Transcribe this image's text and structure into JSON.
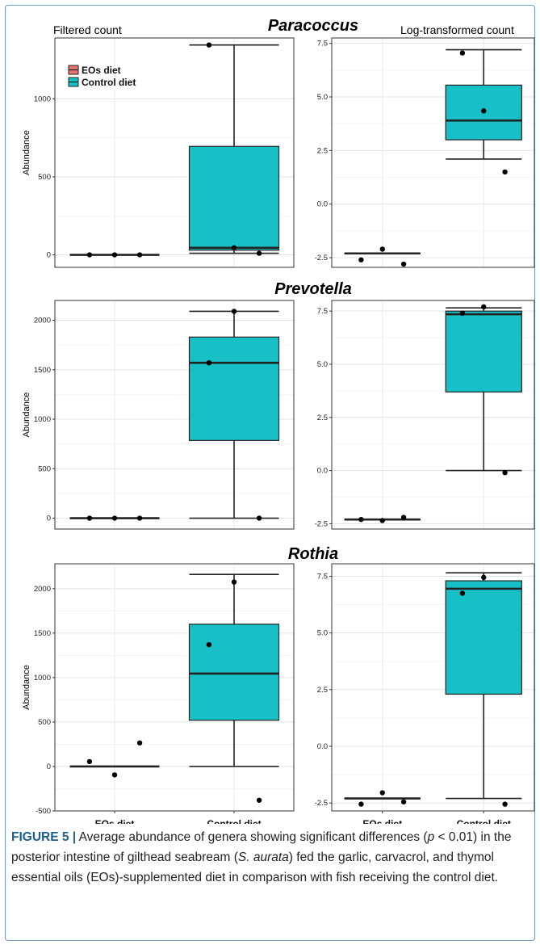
{
  "top_labels": {
    "left": "Filtered count",
    "right": "Log-transformed count"
  },
  "legend": [
    {
      "name": "EOs diet",
      "color": "#e8746d"
    },
    {
      "name": "Control diet",
      "color": "#16c0c6"
    }
  ],
  "y_axis_label": "Abundance",
  "categories": [
    "EOs diet",
    "Control diet"
  ],
  "caption": {
    "label": "FIGURE 5",
    "sep": "|",
    "t1": "Average abundance of genera showing significant differences (",
    "p": "p",
    "t2": " < 0.01) in the posterior intestine of gilthead seabream (",
    "sp": "S. aurata",
    "t3": ") fed the garlic, carvacrol, and thymol essential oils (EOs)-supplemented diet in comparison with fish receiving the control diet."
  },
  "chart_data": [
    {
      "genus": "Paracoccus",
      "type": "box",
      "filtered": {
        "ylim": [
          -80,
          1390
        ],
        "yticks": [
          0,
          500,
          1000
        ],
        "boxes": [
          {
            "category": "EOs diet",
            "min": 0,
            "q1": 0,
            "median": 0,
            "q3": 0,
            "max": 0,
            "points": [
              [
                1,
                0
              ],
              [
                2,
                0
              ],
              [
                3,
                0
              ]
            ]
          },
          {
            "category": "Control diet",
            "min": 10,
            "q1": 30,
            "median": 45,
            "q3": 695,
            "max": 1345,
            "points": [
              [
                1,
                1345
              ],
              [
                2,
                45
              ],
              [
                3,
                10
              ]
            ]
          }
        ]
      },
      "log": {
        "ylim": [
          -2.95,
          7.75
        ],
        "yticks": [
          -2.5,
          0.0,
          2.5,
          5.0,
          7.5
        ],
        "boxes": [
          {
            "category": "EOs diet",
            "min": -2.3,
            "q1": -2.3,
            "median": -2.3,
            "q3": -2.3,
            "max": -2.3,
            "points": [
              [
                1,
                -2.6
              ],
              [
                2,
                -2.1
              ],
              [
                3,
                -2.8
              ]
            ]
          },
          {
            "category": "Control diet",
            "min": 2.1,
            "q1": 3.0,
            "median": 3.9,
            "q3": 5.55,
            "max": 7.2,
            "points": [
              [
                1,
                7.05
              ],
              [
                2,
                4.35
              ],
              [
                3,
                1.5
              ]
            ]
          }
        ]
      }
    },
    {
      "genus": "Prevotella",
      "type": "box",
      "filtered": {
        "ylim": [
          -110,
          2200
        ],
        "yticks": [
          0,
          500,
          1000,
          1500,
          2000
        ],
        "boxes": [
          {
            "category": "EOs diet",
            "min": 0,
            "q1": 0,
            "median": 0,
            "q3": 0,
            "max": 0,
            "points": [
              [
                1,
                0
              ],
              [
                2,
                0
              ],
              [
                3,
                0
              ]
            ]
          },
          {
            "category": "Control diet",
            "min": 0,
            "q1": 785,
            "median": 1570,
            "q3": 1830,
            "max": 2090,
            "points": [
              [
                1,
                1570
              ],
              [
                2,
                2090
              ],
              [
                3,
                0
              ]
            ]
          }
        ]
      },
      "log": {
        "ylim": [
          -2.75,
          8.0
        ],
        "yticks": [
          -2.5,
          0.0,
          2.5,
          5.0,
          7.5
        ],
        "boxes": [
          {
            "category": "EOs diet",
            "min": -2.3,
            "q1": -2.3,
            "median": -2.3,
            "q3": -2.3,
            "max": -2.3,
            "points": [
              [
                1,
                -2.3
              ],
              [
                2,
                -2.35
              ],
              [
                3,
                -2.2
              ]
            ]
          },
          {
            "category": "Control diet",
            "min": 0.0,
            "q1": 3.7,
            "median": 7.35,
            "q3": 7.5,
            "max": 7.65,
            "points": [
              [
                1,
                7.4
              ],
              [
                2,
                7.7
              ],
              [
                3,
                -0.1
              ]
            ]
          }
        ]
      }
    },
    {
      "genus": "Rothia",
      "type": "box",
      "filtered": {
        "ylim": [
          -500,
          2280
        ],
        "yticks": [
          -500,
          0,
          500,
          1000,
          1500,
          2000
        ],
        "boxes": [
          {
            "category": "EOs diet",
            "min": 0,
            "q1": 0,
            "median": 0,
            "q3": 0,
            "max": 0,
            "points": [
              [
                1,
                55
              ],
              [
                2,
                -95
              ],
              [
                3,
                265
              ]
            ]
          },
          {
            "category": "Control diet",
            "min": 0,
            "q1": 520,
            "median": 1045,
            "q3": 1600,
            "max": 2160,
            "points": [
              [
                1,
                1370
              ],
              [
                2,
                2075
              ],
              [
                3,
                -380
              ]
            ]
          }
        ]
      },
      "log": {
        "ylim": [
          -2.85,
          8.05
        ],
        "yticks": [
          -2.5,
          0.0,
          2.5,
          5.0,
          7.5
        ],
        "boxes": [
          {
            "category": "EOs diet",
            "min": -2.3,
            "q1": -2.3,
            "median": -2.3,
            "q3": -2.3,
            "max": -2.3,
            "points": [
              [
                1,
                -2.55
              ],
              [
                2,
                -2.05
              ],
              [
                3,
                -2.45
              ]
            ]
          },
          {
            "category": "Control diet",
            "min": -2.3,
            "q1": 2.3,
            "median": 6.95,
            "q3": 7.3,
            "max": 7.65,
            "points": [
              [
                1,
                6.75
              ],
              [
                2,
                7.45
              ],
              [
                3,
                -2.55
              ]
            ]
          }
        ]
      }
    }
  ]
}
